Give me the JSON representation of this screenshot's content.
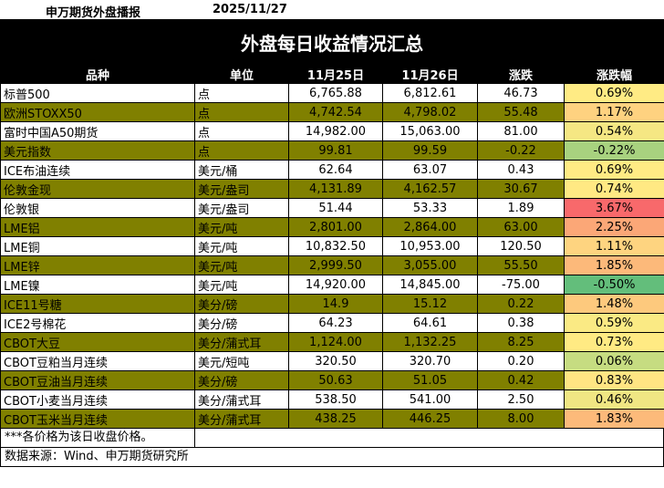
{
  "header": {
    "brand": "申万期货外盘播报",
    "date": "2025/11/27"
  },
  "title": "外盘每日收益情况汇总",
  "columns": [
    "品种",
    "单位",
    "11月25日",
    "11月26日",
    "涨跌",
    "涨跌幅"
  ],
  "rows": [
    {
      "name": "标普500",
      "unit": "点",
      "v1": "6,765.88",
      "v2": "6,812.61",
      "chg": "46.73",
      "pct": "0.69%",
      "color": "#ffeb84"
    },
    {
      "name": "欧洲STOXX50",
      "unit": "点",
      "v1": "4,742.54",
      "v2": "4,798.02",
      "chg": "55.48",
      "pct": "1.17%",
      "color": "#fed280"
    },
    {
      "name": "富时中国A50期货",
      "unit": "点",
      "v1": "14,982.00",
      "v2": "15,063.00",
      "chg": "81.00",
      "pct": "0.54%",
      "color": "#f5e783"
    },
    {
      "name": "美元指数",
      "unit": "点",
      "v1": "99.81",
      "v2": "99.59",
      "chg": "-0.22",
      "pct": "-0.22%",
      "color": "#a8d27f"
    },
    {
      "name": "ICE布油连续",
      "unit": "美元/桶",
      "v1": "62.64",
      "v2": "63.07",
      "chg": "0.43",
      "pct": "0.69%",
      "color": "#ffeb84"
    },
    {
      "name": "伦敦金现",
      "unit": "美元/盎司",
      "v1": "4,131.89",
      "v2": "4,162.57",
      "chg": "30.67",
      "pct": "0.74%",
      "color": "#ffe983"
    },
    {
      "name": "伦敦银",
      "unit": "美元/盎司",
      "v1": "51.44",
      "v2": "53.33",
      "chg": "1.89",
      "pct": "3.67%",
      "color": "#f8696b"
    },
    {
      "name": "LME铝",
      "unit": "美元/吨",
      "v1": "2,801.00",
      "v2": "2,864.00",
      "chg": "63.00",
      "pct": "2.25%",
      "color": "#fba777"
    },
    {
      "name": "LME铜",
      "unit": "美元/吨",
      "v1": "10,832.50",
      "v2": "10,953.00",
      "chg": "120.50",
      "pct": "1.11%",
      "color": "#fed480"
    },
    {
      "name": "LME锌",
      "unit": "美元/吨",
      "v1": "2,999.50",
      "v2": "3,055.00",
      "chg": "55.50",
      "pct": "1.85%",
      "color": "#fcb97a"
    },
    {
      "name": "LME镍",
      "unit": "美元/吨",
      "v1": "14,920.00",
      "v2": "14,845.00",
      "chg": "-75.00",
      "pct": "-0.50%",
      "color": "#63be7b"
    },
    {
      "name": "ICE11号糖",
      "unit": "美分/磅",
      "v1": "14.9",
      "v2": "15.12",
      "chg": "0.22",
      "pct": "1.48%",
      "color": "#fdc97d"
    },
    {
      "name": "ICE2号棉花",
      "unit": "美分/磅",
      "v1": "64.23",
      "v2": "64.61",
      "chg": "0.38",
      "pct": "0.59%",
      "color": "#faea84"
    },
    {
      "name": "CBOT大豆",
      "unit": "美分/蒲式耳",
      "v1": "1,124.00",
      "v2": "1,132.25",
      "chg": "8.25",
      "pct": "0.73%",
      "color": "#ffea83"
    },
    {
      "name": "CBOT豆粕当月连续",
      "unit": "美元/短吨",
      "v1": "320.50",
      "v2": "320.70",
      "chg": "0.20",
      "pct": "0.06%",
      "color": "#c6dc81"
    },
    {
      "name": "CBOT豆油当月连续",
      "unit": "美分/磅",
      "v1": "50.63",
      "v2": "51.05",
      "chg": "0.42",
      "pct": "0.83%",
      "color": "#ffe583"
    },
    {
      "name": "CBOT小麦当月连续",
      "unit": "美分/蒲式耳",
      "v1": "538.50",
      "v2": "541.00",
      "chg": "2.50",
      "pct": "0.46%",
      "color": "#f0e683"
    },
    {
      "name": "CBOT玉米当月连续",
      "unit": "美分/蒲式耳",
      "v1": "438.25",
      "v2": "446.25",
      "chg": "8.00",
      "pct": "1.83%",
      "color": "#fcba7a"
    }
  ],
  "notes": {
    "price_note": "***各价格为该日收盘价格。",
    "source": "数据来源：Wind、申万期货研究所"
  }
}
